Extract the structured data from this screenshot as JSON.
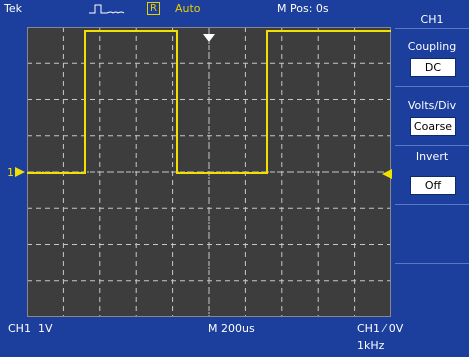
{
  "header": {
    "brand": "Tek",
    "run_state_badge": "R",
    "trigger_mode": "Auto",
    "position_readout": "M Pos: 0s"
  },
  "menu": {
    "title": "CH1",
    "items": [
      {
        "label": "Coupling",
        "value": "DC"
      },
      {
        "label": "Volts/Div",
        "value": "Coarse"
      },
      {
        "label": "Invert",
        "value": "Off"
      }
    ]
  },
  "footer": {
    "channel_scale": "CH1  1V",
    "timebase": "M 200us",
    "trigger_readout": "CH1 ⁄ 0V",
    "frequency": "1kHz"
  },
  "markers": {
    "channel_ground": "1"
  },
  "colors": {
    "background": "#1c3e9c",
    "screen": "#3d3d3d",
    "trace": "#f2e100",
    "grid": "#c8c8c8",
    "text": "#ffffff"
  }
}
